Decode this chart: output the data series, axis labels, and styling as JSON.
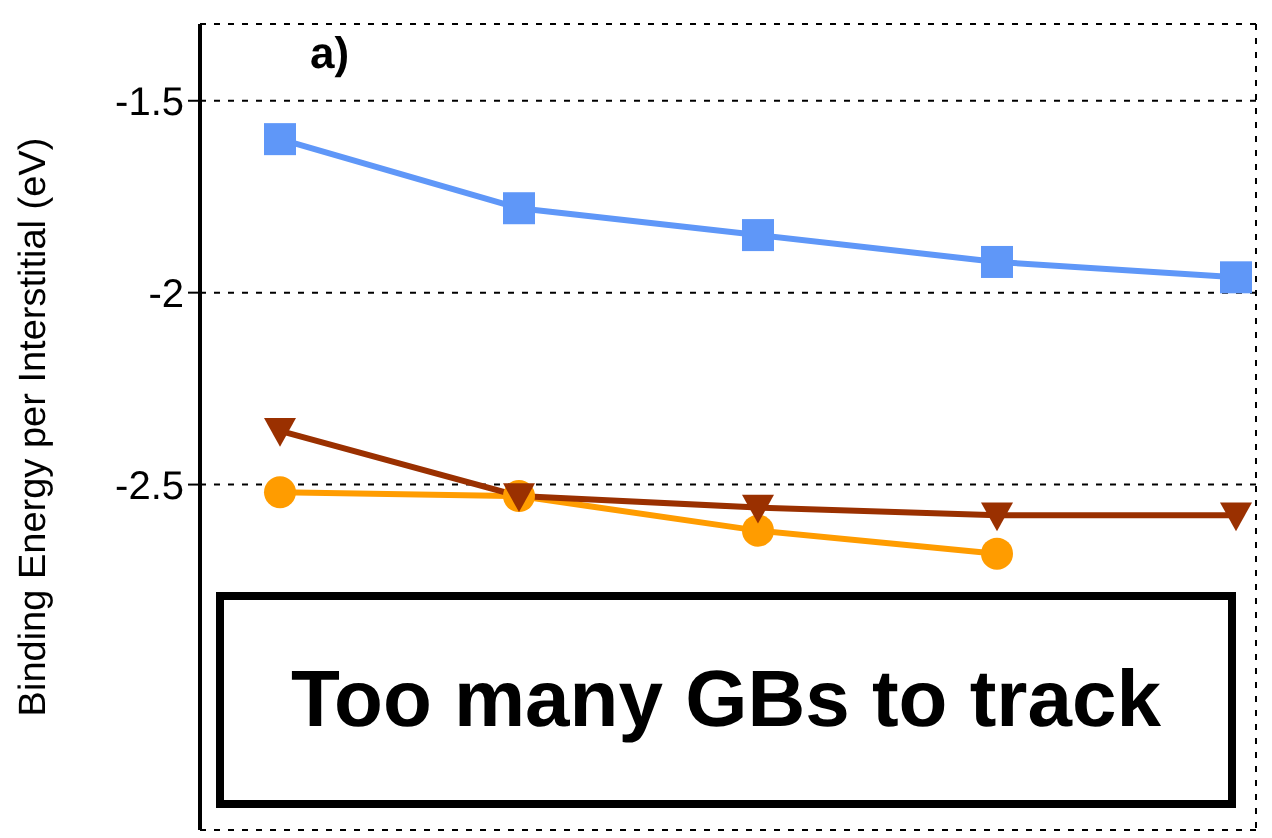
{
  "chart_data": {
    "type": "line",
    "ylabel": "Binding Energy per Interstitial (eV)",
    "annotations": [
      "a)",
      "Too many GBs to track"
    ],
    "categories": [
      null,
      null,
      null,
      null,
      null
    ],
    "ylim": [
      -3.4,
      -1.3
    ],
    "yticks": [
      -2.5,
      -2,
      -1.5
    ],
    "grid": true,
    "tick_labels": "y",
    "line_style": "solid",
    "series": [
      {
        "color": "#5f97f8",
        "marker": "square",
        "values": [
          -1.6,
          -1.78,
          -1.85,
          -1.92,
          -1.96
        ]
      },
      {
        "color": "#ff9c00",
        "marker": "circle",
        "values": [
          -2.52,
          -2.53,
          -2.62,
          -2.68,
          null
        ]
      },
      {
        "color": "#9a3000",
        "marker": "triangle",
        "values": [
          -2.36,
          -2.53,
          -2.56,
          -2.58,
          -2.58
        ]
      }
    ]
  }
}
